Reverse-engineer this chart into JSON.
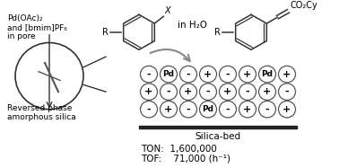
{
  "bg_color": "#ffffff",
  "title_text": "",
  "left_label_lines": [
    "Pd(OAc)₂",
    "and [bmim]PF₆",
    "in pore"
  ],
  "bottom_label_lines": [
    "Reversed phase",
    "amorphous silica"
  ],
  "in_h2o_text": "in H₂O",
  "silica_bed_text": "Silica-bed",
  "ton_text": "TON:  1,600,000",
  "tof_text": "TOF:    71,000 (h⁻¹)",
  "x_label": "X",
  "r_label": "R",
  "co2cy_label": "CO₂Cy",
  "circle_color": "#ffffff",
  "circle_edge_color": "#555555",
  "pd_bg_color": "#ffffff",
  "silica_bar_color": "#222222",
  "arrow_color": "#888888",
  "grid_rows": 3,
  "grid_cols": 8,
  "row1_pattern": [
    "-",
    "Pd",
    "-",
    "+",
    "-",
    "+",
    "Pd",
    "+"
  ],
  "row2_pattern": [
    "+",
    "-",
    "+",
    "-",
    "+",
    "-",
    "+",
    "-"
  ],
  "row3_pattern": [
    "-",
    "+",
    "-",
    "Pd",
    "-",
    "+",
    "-",
    "+"
  ]
}
